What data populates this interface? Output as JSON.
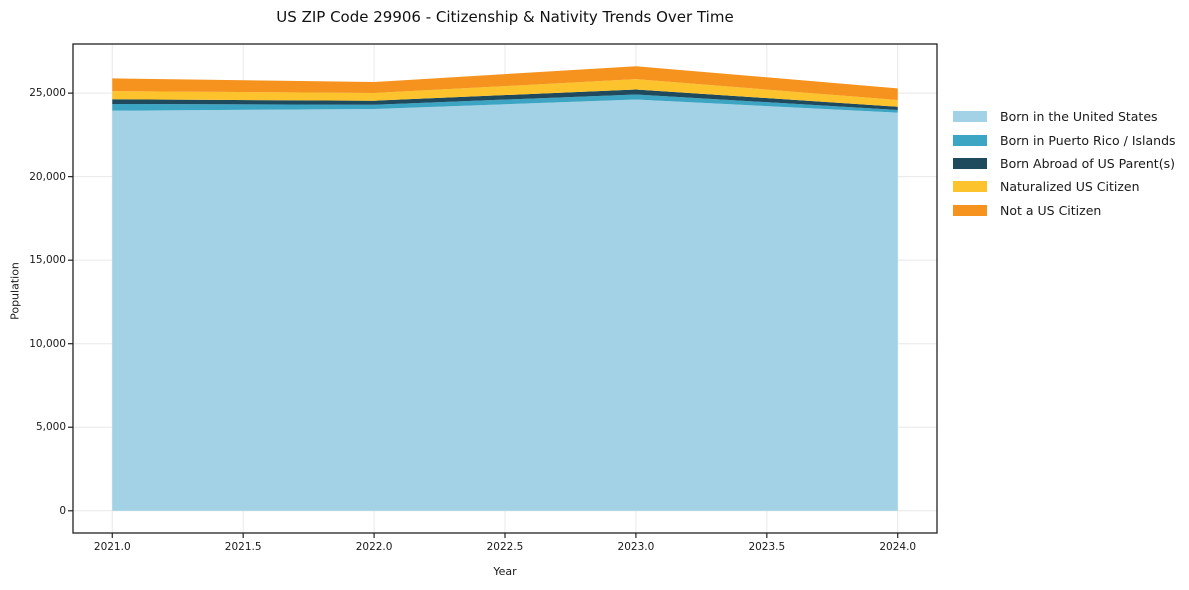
{
  "chart": {
    "title": "US ZIP Code 29906 - Citizenship & Nativity Trends Over Time",
    "xlabel": "Year",
    "ylabel": "Population"
  },
  "chart_data": {
    "type": "area",
    "stacked": true,
    "title": "US ZIP Code 29906 - Citizenship & Nativity Trends Over Time",
    "xlabel": "Year",
    "ylabel": "Population",
    "x": [
      2021,
      2022,
      2023,
      2024
    ],
    "series": [
      {
        "name": "Born in the United States",
        "color": "#a3d1e6",
        "values": [
          23950,
          24050,
          24620,
          23830
        ]
      },
      {
        "name": "Born in Puerto Rico / Islands",
        "color": "#3ba5c3",
        "values": [
          400,
          255,
          300,
          160
        ]
      },
      {
        "name": "Born Abroad of US Parent(s)",
        "color": "#1f4a5e",
        "values": [
          280,
          240,
          300,
          195
        ]
      },
      {
        "name": "Naturalized US Citizen",
        "color": "#fcc32d",
        "values": [
          490,
          460,
          615,
          400
        ]
      },
      {
        "name": "Not a US Citizen",
        "color": "#f6931e",
        "values": [
          760,
          660,
          775,
          700
        ]
      }
    ],
    "xlim": [
      2020.85,
      2024.15
    ],
    "ylim": [
      -1330,
      27940
    ],
    "x_ticks": {
      "values": [
        2021.0,
        2021.5,
        2022.0,
        2022.5,
        2023.0,
        2023.5,
        2024.0
      ],
      "labels": [
        "2021.0",
        "2021.5",
        "2022.0",
        "2022.5",
        "2023.0",
        "2023.5",
        "2024.0"
      ]
    },
    "y_ticks": {
      "values": [
        0,
        5000,
        10000,
        15000,
        20000,
        25000
      ],
      "labels": [
        "0",
        "5,000",
        "10,000",
        "15,000",
        "20,000",
        "25,000"
      ]
    },
    "grid": true,
    "legend_position": "right outside"
  },
  "style": {
    "grid_color": "#e8e8e8",
    "spine_color": "#222222",
    "background": "#ffffff"
  }
}
